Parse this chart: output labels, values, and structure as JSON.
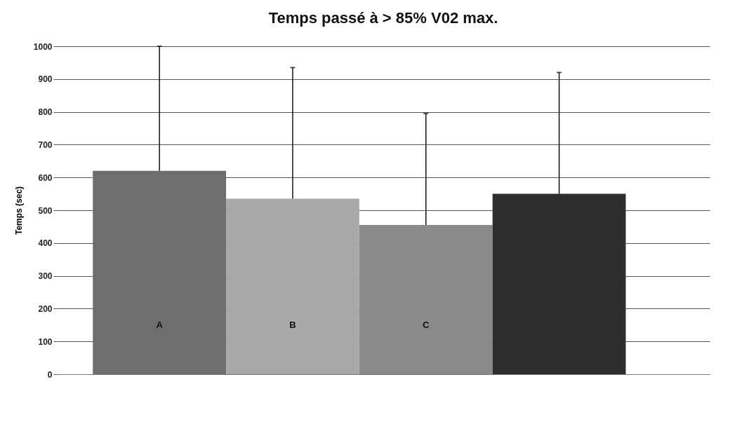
{
  "chart_data": {
    "type": "bar",
    "title": "Temps passé à > 85% V02 max.",
    "ylabel": "Temps (sec)",
    "categories": [
      "A",
      "B",
      "C",
      null
    ],
    "values": [
      620,
      535,
      455,
      550
    ],
    "colors": [
      "#6e6e6e",
      "#a9a9a9",
      "#8a8a8a",
      "#2e2e2e"
    ],
    "errors": [
      [
        620,
        1000
      ],
      [
        535,
        935
      ],
      [
        455,
        795
      ],
      [
        550,
        920
      ]
    ],
    "ylim": [
      0,
      1000
    ],
    "yticks": [
      0,
      100,
      200,
      300,
      400,
      500,
      600,
      700,
      800,
      900,
      1000
    ],
    "grid": "y",
    "legend": false
  }
}
